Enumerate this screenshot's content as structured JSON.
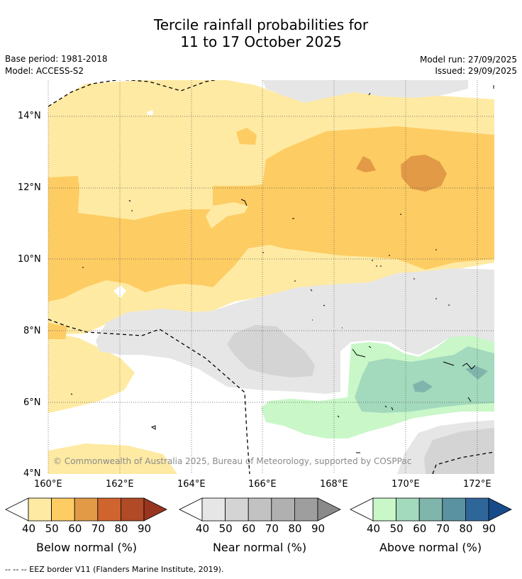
{
  "header": {
    "title_line1": "Tercile rainfall probabilities for",
    "title_line2": "11 to 17 October 2025",
    "base_period": "Base period: 1981-2018",
    "model": "Model: ACCESS-S2",
    "model_run": "Model run: 27/09/2025",
    "issued": "Issued: 29/09/2025"
  },
  "map": {
    "lat_labels": [
      "14°N",
      "12°N",
      "10°N",
      "8°N",
      "6°N",
      "4°N"
    ],
    "lon_labels": [
      "160°E",
      "162°E",
      "164°E",
      "166°E",
      "168°E",
      "170°E",
      "172°E"
    ],
    "copyright": "© Commonwealth of Australia 2025, Bureau of Meteorology, supported by COSPPac"
  },
  "colorbars": [
    {
      "name": "below",
      "label": "Below normal (%)",
      "ticks": [
        "40",
        "50",
        "60",
        "70",
        "80",
        "90"
      ],
      "colors": [
        "#ffeaa3",
        "#fdcc63",
        "#e29a47",
        "#d0642e",
        "#b04a27",
        "#98351e"
      ]
    },
    {
      "name": "near",
      "label": "Near normal (%)",
      "ticks": [
        "40",
        "50",
        "60",
        "70",
        "80",
        "90"
      ],
      "colors": [
        "#e6e6e6",
        "#d4d4d4",
        "#c2c2c2",
        "#b0b0b0",
        "#9e9e9e",
        "#8a8a8a"
      ]
    },
    {
      "name": "above",
      "label": "Above normal (%)",
      "ticks": [
        "40",
        "50",
        "60",
        "70",
        "80",
        "90"
      ],
      "colors": [
        "#c9f7c8",
        "#a3d9bd",
        "#7fb5ab",
        "#5a92a1",
        "#2f6699",
        "#174a88"
      ]
    }
  ],
  "footer": {
    "eez_note": "--  --  -- EEZ border V11 (Flanders Marine Institute, 2019)."
  }
}
